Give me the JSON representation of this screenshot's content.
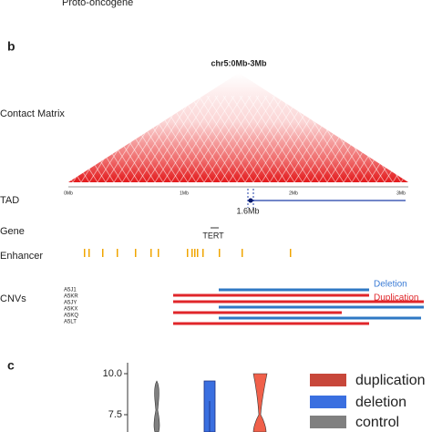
{
  "top_caption": "Proto-oncogene",
  "panel_b": {
    "label": "b",
    "title": "chr5:0Mb-3Mb",
    "tracks": {
      "contact": "Contact Matrix",
      "tad": "TAD",
      "gene": "Gene",
      "enhancer": "Enhancer",
      "cnv": "CNVs"
    },
    "axis_labels": [
      "0Mb",
      "1Mb",
      "2Mb",
      "3Mb"
    ],
    "tad_marker": "1.6Mb",
    "gene_name": "TERT",
    "samples": [
      "A5J1",
      "A5KR",
      "A5JY",
      "A5KX",
      "A5KQ",
      "A5LT"
    ],
    "legend": {
      "deletion": "Deletion",
      "duplication": "Duplication"
    }
  },
  "panel_c": {
    "label": "c",
    "ticks": [
      "10.0",
      "7.5"
    ],
    "legend": [
      "duplication",
      "deletion",
      "control"
    ]
  }
}
